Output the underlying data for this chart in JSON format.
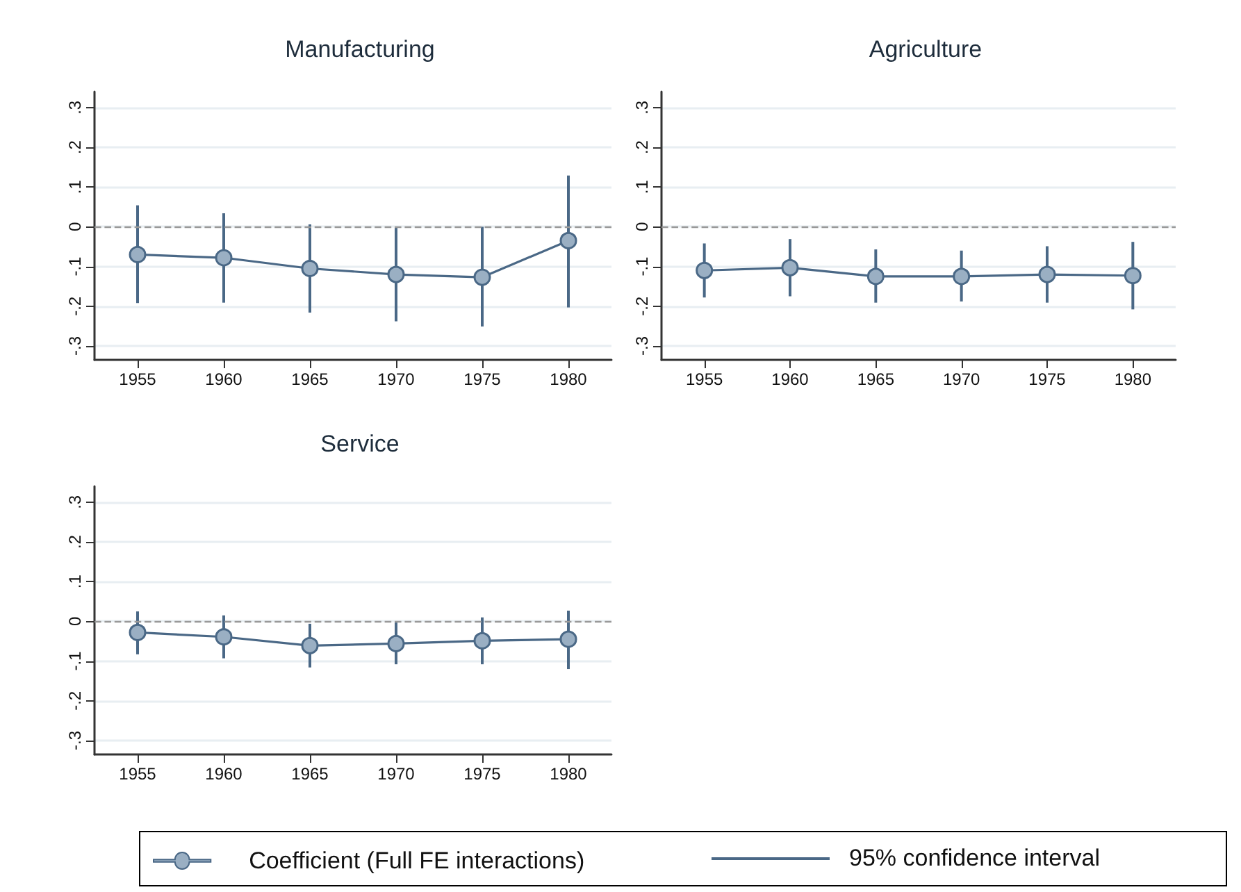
{
  "chart_data": [
    {
      "type": "line",
      "title": "Manufacturing",
      "x": [
        1955,
        1960,
        1965,
        1970,
        1975,
        1980
      ],
      "xlim": [
        1952.5,
        1982.5
      ],
      "xticks": [
        1955,
        1960,
        1965,
        1970,
        1975,
        1980
      ],
      "ylim": [
        -0.335,
        0.34
      ],
      "yticks": [
        {
          "value": -0.3,
          "label": "-.3"
        },
        {
          "value": -0.2,
          "label": "-.2"
        },
        {
          "value": -0.1,
          "label": "-.1"
        },
        {
          "value": 0,
          "label": "0"
        },
        {
          "value": 0.1,
          "label": ".1"
        },
        {
          "value": 0.2,
          "label": ".2"
        },
        {
          "value": 0.3,
          "label": ".3"
        }
      ],
      "grid": "y",
      "marker": "circle",
      "legend": "bottom",
      "annotations": [
        "95% confidence interval"
      ],
      "ref_lines": [
        {
          "axis": "y",
          "value": 0,
          "color": "#999999",
          "line_style": "dashed"
        }
      ],
      "series": [
        {
          "name": "Coefficient (Full FE interactions)",
          "color": "#4a6886",
          "values": [
            -0.07,
            -0.078,
            -0.105,
            -0.12,
            -0.127,
            -0.035
          ],
          "errors": [
            [
              -0.192,
              0.054
            ],
            [
              -0.191,
              0.034
            ],
            [
              -0.216,
              0.006
            ],
            [
              -0.238,
              0
            ],
            [
              -0.251,
              0
            ],
            [
              -0.203,
              0.129
            ]
          ]
        }
      ]
    },
    {
      "type": "line",
      "title": "Agriculture",
      "x": [
        1955,
        1960,
        1965,
        1970,
        1975,
        1980
      ],
      "xlim": [
        1952.5,
        1982.5
      ],
      "xticks": [
        1955,
        1960,
        1965,
        1970,
        1975,
        1980
      ],
      "ylim": [
        -0.335,
        0.34
      ],
      "yticks": [
        {
          "value": -0.3,
          "label": "-.3"
        },
        {
          "value": -0.2,
          "label": "-.2"
        },
        {
          "value": -0.1,
          "label": "-.1"
        },
        {
          "value": 0,
          "label": "0"
        },
        {
          "value": 0.1,
          "label": ".1"
        },
        {
          "value": 0.2,
          "label": ".2"
        },
        {
          "value": 0.3,
          "label": ".3"
        }
      ],
      "grid": "y",
      "marker": "circle",
      "ref_lines": [
        {
          "axis": "y",
          "value": 0,
          "color": "#999999",
          "line_style": "dashed"
        }
      ],
      "series": [
        {
          "color": "#4a6886",
          "values": [
            -0.11,
            -0.103,
            -0.125,
            -0.125,
            -0.12,
            -0.123
          ],
          "errors": [
            [
              -0.178,
              -0.042
            ],
            [
              -0.175,
              -0.031
            ],
            [
              -0.191,
              -0.057
            ],
            [
              -0.188,
              -0.06
            ],
            [
              -0.191,
              -0.049
            ],
            [
              -0.208,
              -0.038
            ]
          ]
        }
      ]
    },
    {
      "type": "line",
      "title": "Service",
      "x": [
        1955,
        1960,
        1965,
        1970,
        1975,
        1980
      ],
      "xlim": [
        1952.5,
        1982.5
      ],
      "xticks": [
        1955,
        1960,
        1965,
        1970,
        1975,
        1980
      ],
      "ylim": [
        -0.335,
        0.34
      ],
      "yticks": [
        {
          "value": -0.3,
          "label": "-.3"
        },
        {
          "value": -0.2,
          "label": "-.2"
        },
        {
          "value": -0.1,
          "label": "-.1"
        },
        {
          "value": 0,
          "label": "0"
        },
        {
          "value": 0.1,
          "label": ".1"
        },
        {
          "value": 0.2,
          "label": ".2"
        },
        {
          "value": 0.3,
          "label": ".3"
        }
      ],
      "grid": "y",
      "marker": "circle",
      "ref_lines": [
        {
          "axis": "y",
          "value": 0,
          "color": "#999999",
          "line_style": "dashed"
        }
      ],
      "series": [
        {
          "color": "#4a6886",
          "values": [
            -0.028,
            -0.039,
            -0.061,
            -0.056,
            -0.049,
            -0.045
          ],
          "errors": [
            [
              -0.083,
              0.025
            ],
            [
              -0.093,
              0.015
            ],
            [
              -0.116,
              -0.006
            ],
            [
              -0.108,
              0
            ],
            [
              -0.108,
              0.01
            ],
            [
              -0.12,
              0.027
            ]
          ]
        }
      ]
    }
  ]
}
